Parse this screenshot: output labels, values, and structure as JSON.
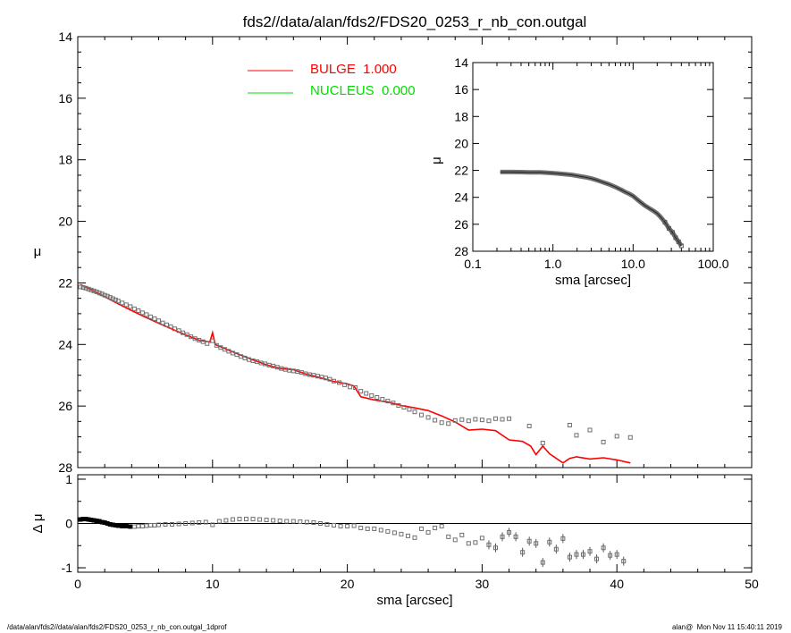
{
  "title": "fds2//data/alan/fds2/FDS20_0253_r_nb_con.outgal",
  "footer": {
    "left": "/data/alan/fds2//data/alan/fds2/FDS20_0253_r_nb_con.outgal_1dprof",
    "right": "alan@  Mon Nov 11 15:40:11 2019"
  },
  "colors": {
    "bulge": "#ff0000",
    "nucleus": "#00dd00",
    "data": "#808080",
    "axes": "#000000"
  },
  "chart_data": [
    {
      "type": "scatter",
      "panel": "main",
      "xlabel": "sma [arcsec]",
      "ylabel": "μ",
      "xlim": [
        0,
        50
      ],
      "ylim": [
        28,
        14
      ],
      "xticks": [
        "0",
        "10",
        "20",
        "30",
        "40",
        "50"
      ],
      "yticks": [
        "14",
        "16",
        "18",
        "20",
        "22",
        "24",
        "26",
        "28"
      ],
      "legend": [
        {
          "name": "BULGE  1.000",
          "color": "#ff0000"
        },
        {
          "name": "NUCLEUS  0.000",
          "color": "#00dd00"
        }
      ],
      "legend_position": "top-left",
      "series": [
        {
          "name": "data",
          "marker": "open-square",
          "x": [
            0.2,
            0.4,
            0.6,
            0.8,
            1.0,
            1.2,
            1.4,
            1.6,
            1.8,
            2.0,
            2.2,
            2.4,
            2.6,
            2.8,
            3.0,
            3.3,
            3.6,
            3.9,
            4.2,
            4.5,
            4.8,
            5.1,
            5.4,
            5.7,
            6.0,
            6.3,
            6.6,
            6.9,
            7.2,
            7.5,
            7.8,
            8.1,
            8.4,
            8.7,
            9.0,
            9.3,
            9.6,
            10.0,
            10.3,
            10.6,
            10.9,
            11.2,
            11.5,
            11.8,
            12.1,
            12.4,
            12.7,
            13.0,
            13.3,
            13.6,
            13.9,
            14.2,
            14.5,
            14.8,
            15.1,
            15.4,
            15.7,
            16.0,
            16.3,
            16.6,
            16.9,
            17.2,
            17.5,
            17.8,
            18.1,
            18.4,
            18.7,
            19.0,
            19.4,
            19.8,
            20.2,
            20.6,
            21.0,
            21.4,
            21.8,
            22.2,
            22.6,
            23.0,
            23.4,
            23.8,
            24.2,
            24.6,
            25.0,
            25.5,
            26.0,
            26.5,
            27.0,
            27.5,
            28.0,
            28.5,
            29.0,
            29.5,
            30.0,
            30.5,
            31.0,
            31.5,
            32.0,
            33.5,
            34.5,
            36.5,
            37.0,
            38.0,
            39.0,
            40.0,
            41.0
          ],
          "y": [
            22.13,
            22.15,
            22.17,
            22.2,
            22.23,
            22.26,
            22.29,
            22.33,
            22.36,
            22.4,
            22.43,
            22.47,
            22.51,
            22.55,
            22.59,
            22.65,
            22.71,
            22.77,
            22.84,
            22.9,
            22.97,
            23.03,
            23.1,
            23.16,
            23.23,
            23.3,
            23.36,
            23.42,
            23.49,
            23.55,
            23.62,
            23.68,
            23.75,
            23.81,
            23.86,
            23.91,
            23.97,
            23.88,
            24.03,
            24.1,
            24.16,
            24.22,
            24.28,
            24.33,
            24.39,
            24.44,
            24.49,
            24.53,
            24.56,
            24.6,
            24.63,
            24.67,
            24.7,
            24.74,
            24.78,
            24.81,
            24.84,
            24.86,
            24.88,
            24.91,
            24.95,
            24.98,
            25.0,
            25.03,
            25.06,
            25.09,
            25.13,
            25.19,
            25.24,
            25.31,
            25.38,
            25.4,
            25.52,
            25.59,
            25.66,
            25.72,
            25.78,
            25.84,
            25.9,
            25.98,
            26.04,
            26.11,
            26.19,
            26.29,
            26.37,
            26.46,
            26.54,
            26.57,
            26.47,
            26.44,
            26.48,
            26.43,
            26.45,
            26.48,
            26.41,
            26.43,
            26.41,
            26.65,
            27.2,
            26.62,
            26.95,
            26.78,
            27.17,
            26.98,
            27.02
          ]
        },
        {
          "name": "BULGE  1.000",
          "color": "#ff0000",
          "x": [
            0.2,
            1,
            2,
            3,
            4,
            5,
            6,
            7,
            8,
            9,
            9.8,
            10,
            10.2,
            11,
            12,
            13,
            14,
            15,
            16,
            17,
            18,
            19,
            20,
            20.5,
            21,
            22,
            23,
            24,
            25,
            26,
            27,
            28,
            29,
            30,
            31,
            32,
            33,
            33.6,
            34,
            34.5,
            35,
            36,
            36.5,
            37,
            38,
            39,
            40,
            41
          ],
          "y": [
            22.05,
            22.22,
            22.45,
            22.68,
            22.9,
            23.11,
            23.31,
            23.5,
            23.69,
            23.86,
            23.92,
            23.62,
            24.0,
            24.15,
            24.33,
            24.5,
            24.66,
            24.78,
            24.82,
            24.97,
            25.08,
            25.2,
            25.28,
            25.35,
            25.7,
            25.8,
            25.87,
            25.98,
            26.06,
            26.15,
            26.32,
            26.52,
            26.78,
            26.75,
            26.8,
            27.1,
            27.15,
            27.3,
            27.58,
            27.3,
            27.55,
            27.85,
            27.7,
            27.65,
            27.72,
            27.68,
            27.75,
            27.85
          ]
        },
        {
          "name": "NUCLEUS  0.000",
          "color": "#00dd00",
          "x": [],
          "y": []
        }
      ]
    },
    {
      "type": "scatter",
      "panel": "residual",
      "xlabel": "sma [arcsec]",
      "ylabel": "Δ μ",
      "xlim": [
        0,
        50
      ],
      "ylim": [
        -1.1,
        1.1
      ],
      "yticks": [
        "1",
        "0",
        "-1"
      ],
      "reference_line": 0,
      "series": [
        {
          "name": "Δ μ",
          "marker": "open-square",
          "x": [
            0.2,
            0.4,
            0.6,
            0.8,
            1.0,
            1.2,
            1.4,
            1.6,
            1.8,
            2.0,
            2.2,
            2.4,
            2.6,
            2.8,
            3.0,
            3.3,
            3.6,
            3.9,
            4.2,
            4.5,
            4.8,
            5.1,
            5.4,
            5.7,
            6.0,
            6.5,
            7.0,
            7.5,
            8.0,
            8.5,
            9.0,
            9.5,
            10.0,
            10.5,
            11.0,
            11.5,
            12.0,
            12.5,
            13.0,
            13.5,
            14.0,
            14.5,
            15.0,
            15.5,
            16.0,
            16.5,
            17.0,
            17.5,
            18.0,
            18.5,
            19.0,
            19.5,
            20.0,
            20.5,
            21.0,
            21.5,
            22.0,
            22.5,
            23.0,
            23.5,
            24.0,
            24.5,
            25.0,
            25.5,
            26.0,
            26.5,
            27.0,
            27.5,
            28.0,
            28.5,
            29.0,
            29.5,
            30.0,
            30.5,
            31.0,
            31.5,
            32.0,
            32.5,
            33.0,
            33.5,
            34.0,
            34.5,
            35.0,
            35.5,
            36.0,
            36.5,
            37.0,
            37.5,
            38.0,
            38.5,
            39.0,
            39.5,
            40.0,
            40.5
          ],
          "y": [
            0.09,
            0.1,
            0.1,
            0.09,
            0.08,
            0.07,
            0.06,
            0.05,
            0.03,
            0.02,
            0.0,
            -0.02,
            -0.03,
            -0.04,
            -0.05,
            -0.06,
            -0.06,
            -0.07,
            -0.07,
            -0.06,
            -0.06,
            -0.05,
            -0.04,
            -0.04,
            -0.03,
            -0.02,
            -0.02,
            -0.01,
            0.0,
            0.01,
            0.02,
            0.03,
            -0.03,
            0.05,
            0.07,
            0.09,
            0.1,
            0.1,
            0.1,
            0.09,
            0.08,
            0.07,
            0.06,
            0.05,
            0.05,
            0.04,
            0.03,
            0.02,
            0.0,
            -0.02,
            -0.04,
            -0.06,
            -0.06,
            -0.05,
            -0.1,
            -0.12,
            -0.12,
            -0.15,
            -0.18,
            -0.21,
            -0.24,
            -0.28,
            -0.32,
            -0.12,
            -0.2,
            -0.1,
            -0.06,
            -0.3,
            -0.37,
            -0.26,
            -0.45,
            -0.43,
            -0.33,
            -0.48,
            -0.55,
            -0.3,
            -0.2,
            -0.3,
            -0.65,
            -0.4,
            -0.45,
            -0.88,
            -0.42,
            -0.58,
            -0.34,
            -0.76,
            -0.7,
            -0.7,
            -0.63,
            -0.8,
            -0.55,
            -0.72,
            -0.7,
            -0.85
          ]
        }
      ]
    },
    {
      "type": "scatter",
      "panel": "inset",
      "xlabel": "sma [arcsec]",
      "ylabel": "μ",
      "xscale": "log",
      "xlim": [
        0.1,
        100.0
      ],
      "ylim": [
        28,
        14
      ],
      "xticks": [
        "0.1",
        "1.0",
        "10.0",
        "100.0"
      ],
      "yticks": [
        "14",
        "16",
        "18",
        "20",
        "22",
        "24",
        "26",
        "28"
      ],
      "series": [
        {
          "name": "data",
          "x": [
            0.22,
            0.3,
            0.4,
            0.5,
            0.7,
            1.0,
            1.3,
            1.7,
            2.0,
            2.5,
            3.0,
            3.5,
            4.0,
            5.0,
            6.0,
            7.0,
            8.0,
            9.0,
            10.0,
            12.0,
            14.0,
            16.0,
            18.0,
            20.0,
            22.0,
            25.0,
            28.0,
            31.0,
            34.0,
            37.0,
            40.0
          ],
          "y": [
            22.12,
            22.12,
            22.13,
            22.14,
            22.15,
            22.2,
            22.26,
            22.33,
            22.4,
            22.5,
            22.6,
            22.72,
            22.84,
            23.03,
            23.23,
            23.42,
            23.6,
            23.75,
            23.9,
            24.3,
            24.6,
            24.82,
            25.0,
            25.2,
            25.45,
            25.85,
            26.3,
            26.6,
            27.0,
            27.3,
            27.6
          ]
        }
      ]
    }
  ]
}
